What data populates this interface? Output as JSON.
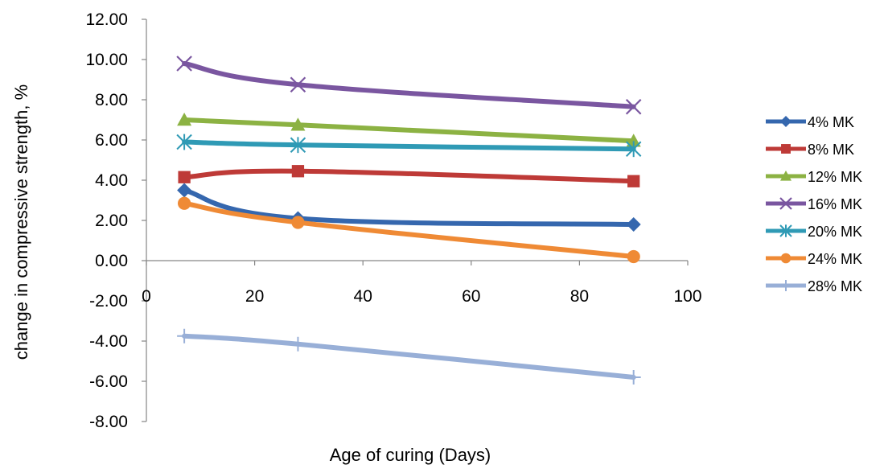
{
  "chart_data": {
    "type": "line",
    "title": "",
    "xlabel": "Age of curing (Days)",
    "ylabel": "change in compressive strength, %",
    "xlim": [
      0,
      100
    ],
    "ylim": [
      -8,
      12
    ],
    "x_ticks": [
      "0",
      "20",
      "40",
      "60",
      "80",
      "100"
    ],
    "y_ticks": [
      "12.00",
      "10.00",
      "8.00",
      "6.00",
      "4.00",
      "2.00",
      "0.00",
      "-2.00",
      "-4.00",
      "-6.00",
      "-8.00"
    ],
    "x": [
      7,
      28,
      90
    ],
    "grid": false,
    "legend_position": "right",
    "series": [
      {
        "name": "4% MK",
        "values": [
          3.5,
          2.1,
          1.8
        ],
        "color": "#3567AE",
        "marker": "diamond"
      },
      {
        "name": "8% MK",
        "values": [
          4.15,
          4.45,
          3.95
        ],
        "color": "#BE3A37",
        "marker": "square"
      },
      {
        "name": "12% MK",
        "values": [
          7.0,
          6.75,
          5.95
        ],
        "color": "#8CB243",
        "marker": "triangle"
      },
      {
        "name": "16% MK",
        "values": [
          9.8,
          8.75,
          7.65
        ],
        "color": "#7A56A0",
        "marker": "x"
      },
      {
        "name": "20% MK",
        "values": [
          5.9,
          5.75,
          5.55
        ],
        "color": "#2F9AB5",
        "marker": "asterisk"
      },
      {
        "name": "24% MK",
        "values": [
          2.85,
          1.9,
          0.2
        ],
        "color": "#EF8A35",
        "marker": "circle"
      },
      {
        "name": "28% MK",
        "values": [
          -3.75,
          -4.15,
          -5.8
        ],
        "color": "#98AFD7",
        "marker": "plus"
      }
    ]
  }
}
